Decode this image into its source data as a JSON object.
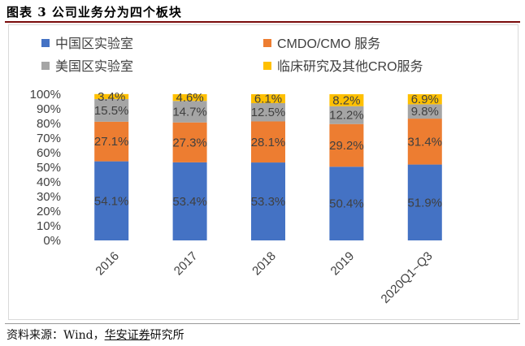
{
  "figure": {
    "title": "图表 3 公司业务分为四个板块",
    "source_prefix": "资料来源：Wind，",
    "source_link": "华安证券",
    "source_suffix": "研究所"
  },
  "colors": {
    "china_lab": "#4472C4",
    "cmdo": "#ED7D31",
    "us_lab": "#A5A5A5",
    "clinical": "#FFC000",
    "label": "#404040"
  },
  "chart_data": {
    "type": "bar",
    "stacked": true,
    "percent": true,
    "title": "",
    "xlabel": "",
    "ylabel": "",
    "ylim": [
      0,
      100
    ],
    "yticks": [
      "0%",
      "10%",
      "20%",
      "30%",
      "40%",
      "50%",
      "60%",
      "70%",
      "80%",
      "90%",
      "100%"
    ],
    "categories": [
      "2016",
      "2017",
      "2018",
      "2019",
      "2020Q1~Q3"
    ],
    "legend_position": "top",
    "series": [
      {
        "name": "中国区实验室",
        "color_key": "china_lab",
        "values": [
          54.1,
          53.4,
          53.3,
          50.4,
          51.9
        ],
        "labels": [
          "54.1%",
          "53.4%",
          "53.3%",
          "50.4%",
          "51.9%"
        ]
      },
      {
        "name": "CMDO/CMO 服务",
        "color_key": "cmdo",
        "values": [
          27.1,
          27.3,
          28.1,
          29.2,
          31.4
        ],
        "labels": [
          "27.1%",
          "27.3%",
          "28.1%",
          "29.2%",
          "31.4%"
        ]
      },
      {
        "name": "美国区实验室",
        "color_key": "us_lab",
        "values": [
          15.5,
          14.7,
          12.5,
          12.2,
          9.8
        ],
        "labels": [
          "15.5%",
          "14.7%",
          "12.5%",
          "12.2%",
          "9.8%"
        ]
      },
      {
        "name": "临床研究及其他CRO服务",
        "color_key": "clinical",
        "values": [
          3.4,
          4.6,
          6.1,
          8.2,
          6.9
        ],
        "labels": [
          "3.4%",
          "4.6%",
          "6.1%",
          "8.2%",
          "6.9%"
        ]
      }
    ]
  }
}
